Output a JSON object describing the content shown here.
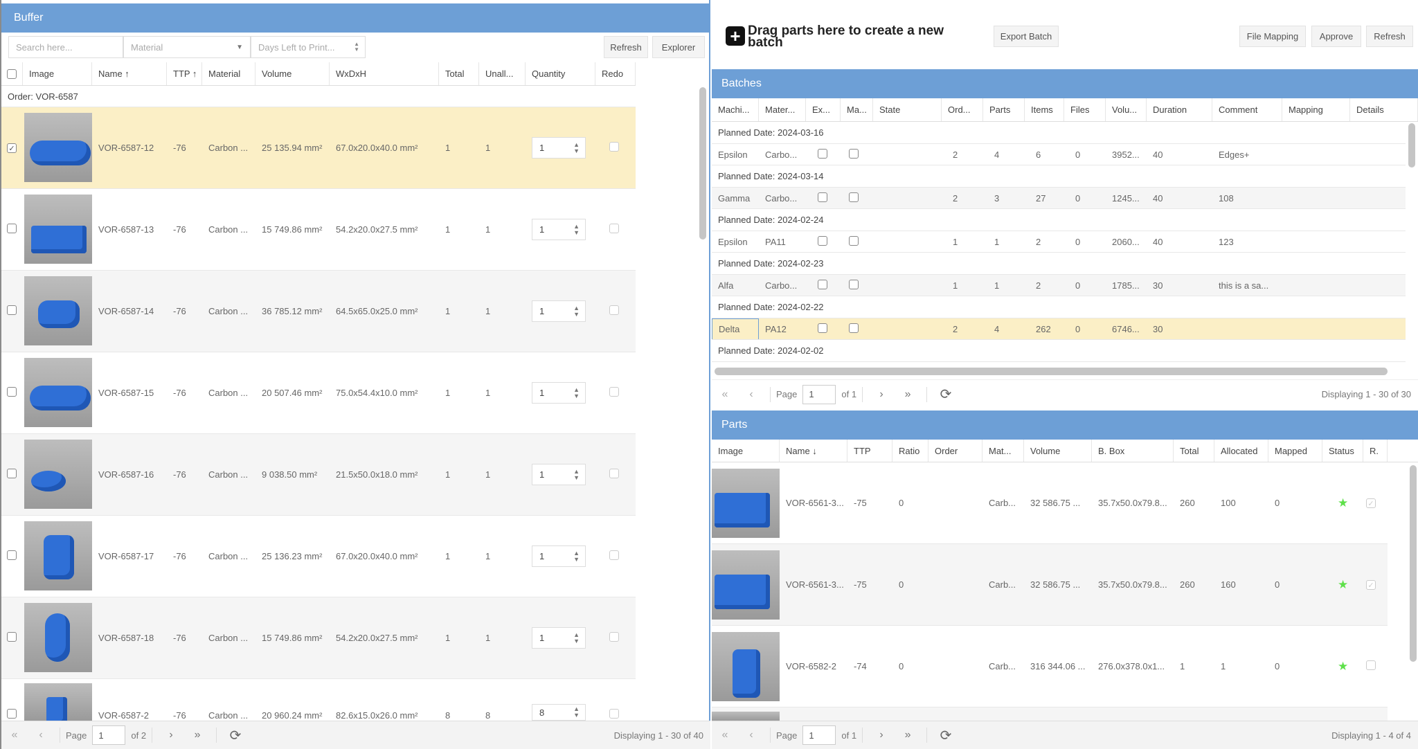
{
  "buffer": {
    "title": "Buffer",
    "search_placeholder": "Search here...",
    "material_placeholder": "Material",
    "days_placeholder": "Days Left to Print...",
    "refresh_label": "Refresh",
    "explorer_label": "Explorer",
    "columns": [
      "Image",
      "Name ↑",
      "TTP ↑",
      "Material",
      "Volume",
      "WxDxH",
      "Total",
      "Unall...",
      "Quantity",
      "Redo"
    ],
    "order_group": "Order: VOR-6587",
    "rows": [
      {
        "name": "VOR-6587-12",
        "ttp": "-76",
        "material": "Carbon ...",
        "volume": "25 135.94 mm²",
        "dims": "67.0x20.0x40.0 mm²",
        "total": "1",
        "unall": "1",
        "qty": "1",
        "checked": true,
        "selected": true
      },
      {
        "name": "VOR-6587-13",
        "ttp": "-76",
        "material": "Carbon ...",
        "volume": "15 749.86 mm²",
        "dims": "54.2x20.0x27.5 mm²",
        "total": "1",
        "unall": "1",
        "qty": "1",
        "checked": false,
        "selected": false
      },
      {
        "name": "VOR-6587-14",
        "ttp": "-76",
        "material": "Carbon ...",
        "volume": "36 785.12 mm²",
        "dims": "64.5x65.0x25.0 mm²",
        "total": "1",
        "unall": "1",
        "qty": "1",
        "checked": false,
        "selected": false
      },
      {
        "name": "VOR-6587-15",
        "ttp": "-76",
        "material": "Carbon ...",
        "volume": "20 507.46 mm²",
        "dims": "75.0x54.4x10.0 mm²",
        "total": "1",
        "unall": "1",
        "qty": "1",
        "checked": false,
        "selected": false
      },
      {
        "name": "VOR-6587-16",
        "ttp": "-76",
        "material": "Carbon ...",
        "volume": "9 038.50 mm²",
        "dims": "21.5x50.0x18.0 mm²",
        "total": "1",
        "unall": "1",
        "qty": "1",
        "checked": false,
        "selected": false
      },
      {
        "name": "VOR-6587-17",
        "ttp": "-76",
        "material": "Carbon ...",
        "volume": "25 136.23 mm²",
        "dims": "67.0x20.0x40.0 mm²",
        "total": "1",
        "unall": "1",
        "qty": "1",
        "checked": false,
        "selected": false
      },
      {
        "name": "VOR-6587-18",
        "ttp": "-76",
        "material": "Carbon ...",
        "volume": "15 749.86 mm²",
        "dims": "54.2x20.0x27.5 mm²",
        "total": "1",
        "unall": "1",
        "qty": "1",
        "checked": false,
        "selected": false
      },
      {
        "name": "VOR-6587-2",
        "ttp": "-76",
        "material": "Carbon ...",
        "volume": "20 960.24 mm²",
        "dims": "82.6x15.0x26.0 mm²",
        "total": "8",
        "unall": "8",
        "qty": "8",
        "checked": false,
        "selected": false
      }
    ],
    "pager": {
      "page_label": "Page",
      "page": "1",
      "of": "of 2",
      "display": "Displaying 1 - 30 of 40"
    }
  },
  "toolbar": {
    "drag_text": "Drag parts here to create a new batch",
    "export_batch": "Export Batch",
    "file_mapping": "File Mapping",
    "approve": "Approve",
    "refresh": "Refresh"
  },
  "batches": {
    "title": "Batches",
    "columns": [
      "Machi...",
      "Mater...",
      "Ex...",
      "Ma...",
      "State",
      "Ord...",
      "Parts",
      "Items",
      "Files",
      "Volu...",
      "Duration",
      "Comment",
      "Mapping",
      "Details"
    ],
    "groups": [
      {
        "date": "Planned Date: 2024-03-16",
        "row": {
          "machine": "Epsilon",
          "material": "Carbo...",
          "state": "",
          "orders": "2",
          "parts": "4",
          "items": "6",
          "files": "0",
          "volume": "3952...",
          "duration": "40",
          "comment": "Edges+",
          "selected": false
        }
      },
      {
        "date": "Planned Date: 2024-03-14",
        "row": {
          "machine": "Gamma",
          "material": "Carbo...",
          "state": "",
          "orders": "2",
          "parts": "3",
          "items": "27",
          "files": "0",
          "volume": "1245...",
          "duration": "40",
          "comment": "108",
          "selected": false
        }
      },
      {
        "date": "Planned Date: 2024-02-24",
        "row": {
          "machine": "Epsilon",
          "material": "PA11",
          "state": "",
          "orders": "1",
          "parts": "1",
          "items": "2",
          "files": "0",
          "volume": "2060...",
          "duration": "40",
          "comment": "123",
          "selected": false
        }
      },
      {
        "date": "Planned Date: 2024-02-23",
        "row": {
          "machine": "Alfa",
          "material": "Carbo...",
          "state": "",
          "orders": "1",
          "parts": "1",
          "items": "2",
          "files": "0",
          "volume": "1785...",
          "duration": "30",
          "comment": "this is a sa...",
          "selected": false
        }
      },
      {
        "date": "Planned Date: 2024-02-22",
        "row": {
          "machine": "Delta",
          "material": "PA12",
          "state": "",
          "orders": "2",
          "parts": "4",
          "items": "262",
          "files": "0",
          "volume": "6746...",
          "duration": "30",
          "comment": "",
          "selected": true
        }
      },
      {
        "date": "Planned Date: 2024-02-02",
        "row": null
      }
    ],
    "pager": {
      "page_label": "Page",
      "page": "1",
      "of": "of 1",
      "display": "Displaying 1 - 30 of 30"
    }
  },
  "parts": {
    "title": "Parts",
    "columns": [
      "Image",
      "Name ↓",
      "TTP",
      "Ratio",
      "Order",
      "Mat...",
      "Volume",
      "B. Box",
      "Total",
      "Allocated",
      "Mapped",
      "Status",
      "R."
    ],
    "rows": [
      {
        "name": "VOR-6561-3...",
        "ttp": "-75",
        "ratio": "0",
        "order": "",
        "material": "Carb...",
        "volume": "32 586.75 ...",
        "bbox": "35.7x50.0x79.8...",
        "total": "260",
        "allocated": "100",
        "mapped": "0",
        "status": "star",
        "redo": true
      },
      {
        "name": "VOR-6561-3...",
        "ttp": "-75",
        "ratio": "0",
        "order": "",
        "material": "Carb...",
        "volume": "32 586.75 ...",
        "bbox": "35.7x50.0x79.8...",
        "total": "260",
        "allocated": "160",
        "mapped": "0",
        "status": "star",
        "redo": true
      },
      {
        "name": "VOR-6582-2",
        "ttp": "-74",
        "ratio": "0",
        "order": "",
        "material": "Carb...",
        "volume": "316 344.06 ...",
        "bbox": "276.0x378.0x1...",
        "total": "1",
        "allocated": "1",
        "mapped": "0",
        "status": "star",
        "redo": false
      }
    ],
    "pager": {
      "page_label": "Page",
      "page": "1",
      "of": "of 1",
      "display": "Displaying 1 - 4 of 4"
    }
  },
  "colors": {
    "header": "#6d9fd6",
    "selected_row": "#fbefc6",
    "status_star": "#5ee04a"
  }
}
